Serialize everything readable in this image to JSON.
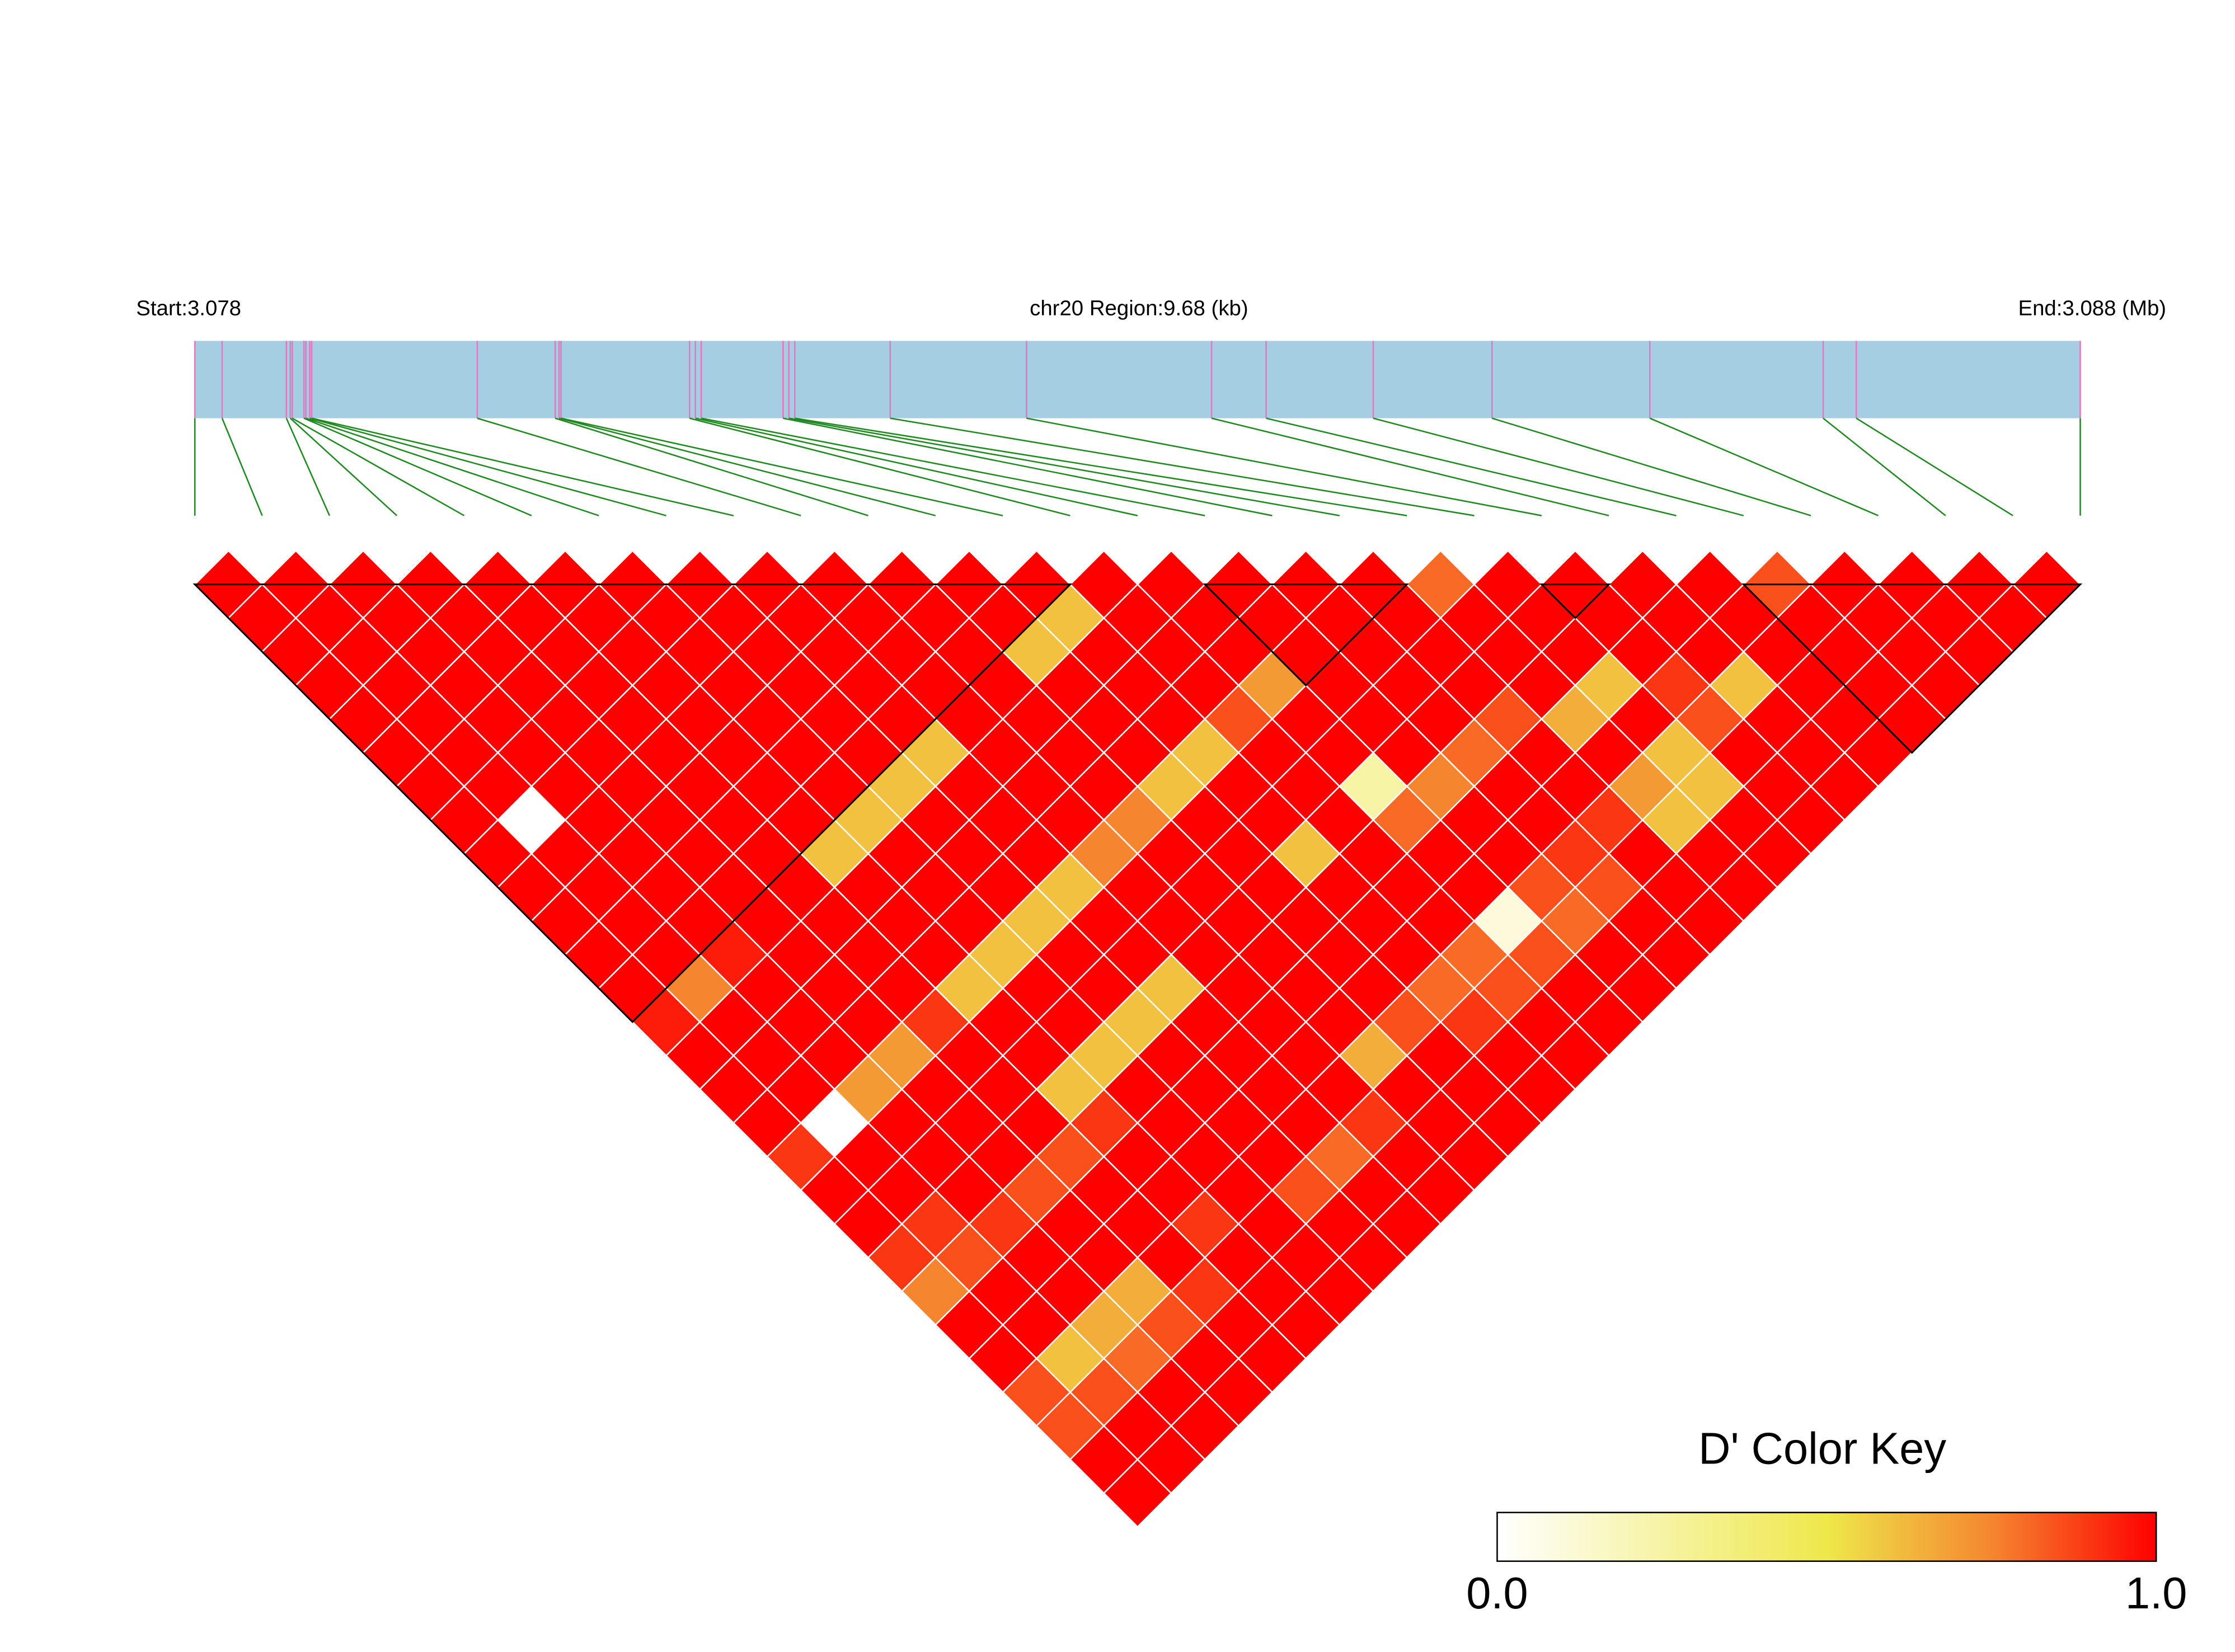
{
  "chart_data": {
    "type": "ld-heatmap",
    "start_label": "Start:3.078",
    "region_label": "chr20 Region:9.68 (kb)",
    "end_label": "End:3.088 (Mb)",
    "xlim": [
      0,
      9.68
    ],
    "snp_positions": [
      0,
      0.14,
      0.47,
      0.49,
      0.5,
      0.56,
      0.57,
      0.59,
      0.6,
      1.45,
      1.85,
      1.87,
      1.88,
      2.54,
      2.57,
      2.6,
      3.02,
      3.05,
      3.08,
      3.57,
      4.27,
      5.22,
      5.5,
      6.05,
      6.66,
      7.47,
      8.36,
      8.53,
      9.68
    ],
    "dprime": [
      [
        1,
        1,
        1,
        1,
        1,
        1,
        1,
        1,
        1,
        1,
        1,
        1,
        1,
        0.95,
        1,
        1,
        1,
        0.9,
        1,
        1,
        0.9,
        0.75,
        1,
        1,
        0.85,
        0.85,
        1,
        1
      ],
      [
        1,
        1,
        1,
        1,
        1,
        1,
        1,
        0,
        1,
        1,
        1,
        1,
        0.75,
        1,
        1,
        1,
        0,
        1,
        1,
        0.9,
        0.85,
        1,
        1,
        0.6,
        0.85,
        1,
        1
      ],
      [
        1,
        1,
        1,
        1,
        1,
        1,
        1,
        1,
        1,
        1,
        1,
        0.95,
        1,
        1,
        1,
        0.7,
        1,
        1,
        1,
        0.9,
        1,
        1,
        0.65,
        0.8,
        1,
        1
      ],
      [
        1,
        1,
        1,
        1,
        1,
        1,
        1,
        1,
        1,
        1,
        1,
        1,
        1,
        1,
        0.7,
        1,
        1,
        1,
        0.85,
        1,
        1,
        0.65,
        0.85,
        1,
        1
      ],
      [
        1,
        1,
        1,
        1,
        1,
        1,
        1,
        1,
        1,
        1,
        1,
        1,
        1,
        0.9,
        1,
        1,
        1,
        0.85,
        1,
        1,
        1,
        0.9,
        1,
        1
      ],
      [
        1,
        1,
        1,
        1,
        1,
        1,
        1,
        1,
        0.6,
        1,
        1,
        1,
        0.6,
        1,
        1,
        0.6,
        0.9,
        1,
        1,
        0.9,
        1,
        1,
        1
      ],
      [
        1,
        1,
        1,
        1,
        1,
        1,
        1,
        0.6,
        1,
        1,
        1,
        0.6,
        1,
        1,
        0.6,
        1,
        1,
        1,
        1,
        1,
        1,
        1
      ],
      [
        1,
        1,
        1,
        1,
        1,
        1,
        0.6,
        1,
        1,
        1,
        0.6,
        1,
        1,
        0.6,
        1,
        1,
        1,
        1,
        0.85,
        1,
        1
      ],
      [
        1,
        1,
        1,
        1,
        1,
        0.6,
        1,
        1,
        1,
        0.6,
        1,
        1,
        0.6,
        1,
        1,
        1,
        1,
        0.8,
        1,
        1
      ],
      [
        1,
        1,
        1,
        1,
        1,
        1,
        1,
        1,
        0.75,
        1,
        1,
        1,
        1,
        1,
        1,
        1,
        0.9,
        1,
        1
      ],
      [
        1,
        1,
        1,
        1,
        1,
        1,
        1,
        0.75,
        1,
        1,
        1,
        1,
        1,
        1,
        0.65,
        1,
        1,
        1
      ],
      [
        1,
        1,
        0.6,
        1,
        1,
        1,
        0.6,
        1,
        1,
        1,
        1,
        1,
        1,
        0.85,
        1,
        1,
        1
      ],
      [
        1,
        0.6,
        1,
        1,
        1,
        0.6,
        1,
        1,
        0.6,
        1,
        1,
        1,
        0.8,
        0.9,
        1,
        1
      ],
      [
        1,
        1,
        1,
        1,
        0.85,
        1,
        1,
        1,
        1,
        1,
        1,
        0.8,
        0.85,
        1,
        1
      ],
      [
        1,
        1,
        1,
        0.7,
        1,
        1,
        0.25,
        0.8,
        1,
        1,
        0.1,
        0.85,
        1,
        1
      ],
      [
        1,
        1,
        1,
        1,
        1,
        1,
        0.75,
        1,
        1,
        0.85,
        0.8,
        1,
        1
      ],
      [
        1,
        1,
        1,
        1,
        1,
        0.8,
        1,
        1,
        0.9,
        0.85,
        1,
        1
      ],
      [
        1,
        1,
        1,
        1,
        0.85,
        1,
        1,
        0.9,
        1,
        1,
        1
      ],
      [
        0.8,
        1,
        1,
        1,
        0.65,
        1,
        0.7,
        0.6,
        1,
        1
      ],
      [
        1,
        1,
        1,
        0.6,
        1,
        0.6,
        0.6,
        1,
        1
      ],
      [
        1,
        1,
        1,
        0.9,
        0.85,
        1,
        1,
        1
      ],
      [
        1,
        1,
        1,
        0.6,
        1,
        1,
        1
      ],
      [
        1,
        1,
        1,
        1,
        1,
        1
      ],
      [
        0.85,
        1,
        1,
        1,
        1
      ],
      [
        1,
        1,
        1,
        1
      ],
      [
        1,
        1,
        1
      ],
      [
        1,
        1
      ],
      [
        1
      ]
    ],
    "blocks": [
      [
        0,
        13
      ],
      [
        15,
        18
      ],
      [
        20,
        21
      ],
      [
        23,
        28
      ]
    ],
    "colorscale": [
      [
        0,
        "#ffffff"
      ],
      [
        0.5,
        "#eee84a"
      ],
      [
        0.75,
        "#f5862f"
      ],
      [
        1,
        "#ff0000"
      ]
    ],
    "legend_title": "D' Color Key",
    "legend_lim": [
      0,
      1
    ],
    "legend_ticks": [
      {
        "value": 0,
        "label": "0.0"
      },
      {
        "value": 1,
        "label": "1.0"
      }
    ],
    "bar_color": "#a6cee3",
    "snp_line_color": "#e377c2",
    "connector_color": "#1f8a1f"
  }
}
